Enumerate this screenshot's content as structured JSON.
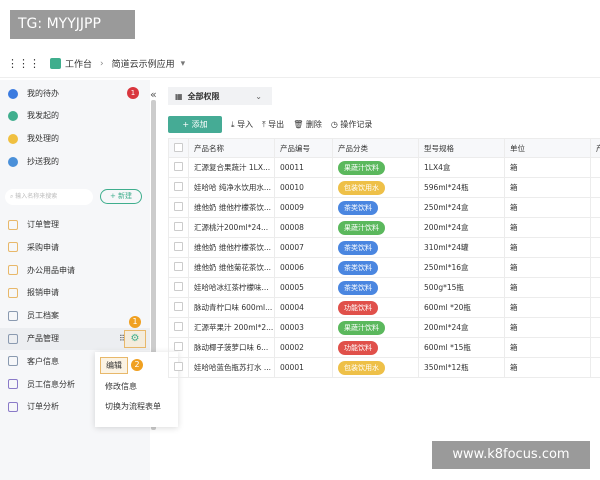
{
  "watermarks": {
    "top": "TG: MYYJJPP",
    "bottom": "www.k8focus.com"
  },
  "header": {
    "workspace": "工作台",
    "app": "简道云示例应用"
  },
  "sidebar": {
    "quick": [
      {
        "label": "我的待办",
        "badge": "1",
        "color": "#3b7be0",
        "icon": "bell-icon"
      },
      {
        "label": "我发起的",
        "color": "#3fae8d",
        "icon": "play-icon"
      },
      {
        "label": "我处理的",
        "color": "#f0c040",
        "icon": "check-box-icon"
      },
      {
        "label": "抄送我的",
        "color": "#4a90d9",
        "icon": "send-icon"
      }
    ],
    "search_placeholder": "输入名称来搜索",
    "new_label": "+ 新建",
    "menu": [
      {
        "label": "订单管理",
        "color": "#e8b86a"
      },
      {
        "label": "采购申请",
        "color": "#e8b86a"
      },
      {
        "label": "办公用品申请",
        "color": "#e8b86a"
      },
      {
        "label": "报销申请",
        "color": "#e8b86a"
      },
      {
        "label": "员工档案",
        "color": "#8a9ab0"
      },
      {
        "label": "产品管理",
        "color": "#8a9ab0"
      },
      {
        "label": "客户信息",
        "color": "#8a9ab0"
      },
      {
        "label": "员工信息分析",
        "color": "#8a7ac8"
      },
      {
        "label": "订单分析",
        "color": "#8a7ac8"
      }
    ],
    "step1": "1",
    "step2": "2"
  },
  "popup": {
    "items": [
      "编辑",
      "修改信息",
      "切换为流程表单"
    ]
  },
  "main": {
    "tab": "全部权限",
    "toolbar": {
      "add": "+ 添加",
      "import": "⤓ 导入",
      "export": "⤒ 导出",
      "delete": "🗑 删除",
      "log": "◷ 操作记录"
    },
    "columns": [
      "产品名称",
      "产品编号",
      "产品分类",
      "型号规格",
      "单位",
      "产"
    ],
    "category_colors": {
      "果蔬汁饮料": "#5bb85d",
      "包装饮用水": "#eec048",
      "茶类饮料": "#4a86e0",
      "功能饮料": "#e0504a"
    },
    "rows": [
      [
        "汇源复合果蔬汁 1LX...",
        "00011",
        "果蔬汁饮料",
        "1LX4盒",
        "箱"
      ],
      [
        "娃哈哈 纯净水饮用水...",
        "00010",
        "包装饮用水",
        "596ml*24瓶",
        "箱"
      ],
      [
        "维他奶 维他柠檬茶饮...",
        "00009",
        "茶类饮料",
        "250ml*24盒",
        "箱"
      ],
      [
        "汇源桃汁200ml*24...",
        "00008",
        "果蔬汁饮料",
        "200ml*24盒",
        "箱"
      ],
      [
        "维他奶 维他柠檬茶饮...",
        "00007",
        "茶类饮料",
        "310ml*24罐",
        "箱"
      ],
      [
        "维他奶 维他菊花茶饮...",
        "00006",
        "茶类饮料",
        "250ml*16盒",
        "箱"
      ],
      [
        "娃哈哈冰红茶柠檬味...",
        "00005",
        "茶类饮料",
        "500g*15瓶",
        "箱"
      ],
      [
        "脉动青柠口味 600ml...",
        "00004",
        "功能饮料",
        "600ml *20瓶",
        "箱"
      ],
      [
        "汇源苹果汁 200ml*2...",
        "00003",
        "果蔬汁饮料",
        "200ml*24盒",
        "箱"
      ],
      [
        "脉动椰子菠萝口味 6...",
        "00002",
        "功能饮料",
        "600ml *15瓶",
        "箱"
      ],
      [
        "娃哈哈蓝色瓶苏打水 ...",
        "00001",
        "包装饮用水",
        "350ml*12瓶",
        "箱"
      ]
    ]
  }
}
